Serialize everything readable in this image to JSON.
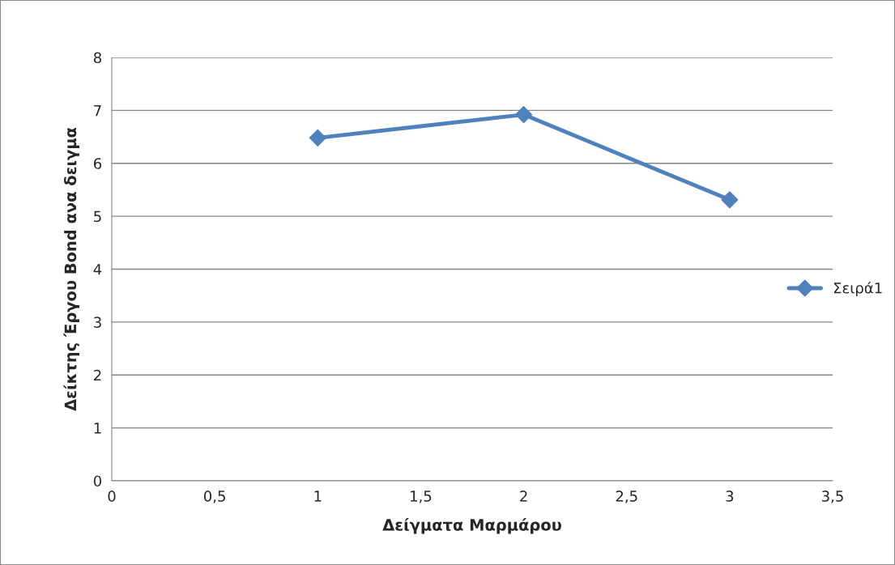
{
  "chart_data": {
    "type": "line",
    "xlabel": "Δείγματα Μαρμάρου",
    "ylabel": "Δείκτης Έργου Bond ανα δειγμα",
    "x": [
      1,
      2,
      3
    ],
    "series": [
      {
        "name": "Σειρά1",
        "color": "#4f81bd",
        "values": [
          6.48,
          6.92,
          5.31
        ]
      }
    ],
    "xlim": [
      0,
      3.5
    ],
    "xticks": [
      0,
      {
        "value": 0.5,
        "label": "0,5"
      },
      1,
      {
        "value": 1.5,
        "label": "1,5"
      },
      2,
      {
        "value": 2.5,
        "label": "2,5"
      },
      3,
      {
        "value": 3.5,
        "label": "3,5"
      }
    ],
    "ylim": [
      0,
      8
    ],
    "yticks": [
      0,
      1,
      2,
      3,
      4,
      5,
      6,
      7,
      8
    ],
    "grid": "y",
    "legend": "right",
    "marker": "diamond",
    "line_style": "solid"
  }
}
